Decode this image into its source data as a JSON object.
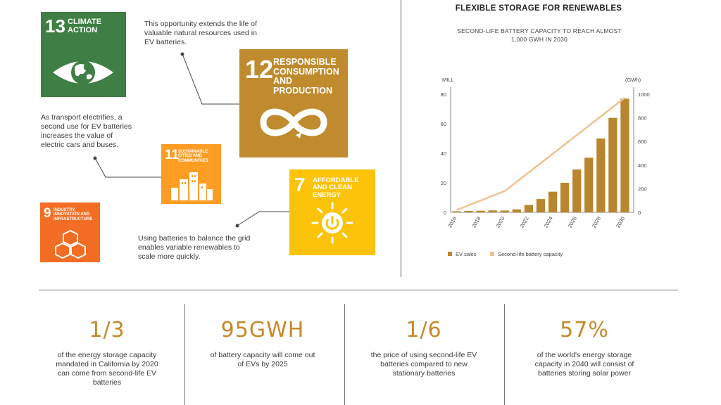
{
  "sdg": {
    "goal13": {
      "number": "13",
      "title": "CLIMATE ACTION",
      "color": "#3f7e44"
    },
    "goal12": {
      "number": "12",
      "title": "RESPONSIBLE CONSUMPTION AND PRODUCTION",
      "color": "#bf8b2e"
    },
    "goal11": {
      "number": "11",
      "title": "SUSTAINABLE CITIES AND COMMUNITIES",
      "color": "#fd9d24"
    },
    "goal7": {
      "number": "7",
      "title": "AFFORDABLE AND CLEAN ENERGY",
      "color": "#fcc30b"
    },
    "goal9": {
      "number": "9",
      "title": "INDUSTRY, INNOVATION AND INFRASTRUCTURE",
      "color": "#f36d25"
    }
  },
  "notes": {
    "resources": "This opportunity extends the life of valuable natural resources used in EV batteries.",
    "transport": "As transport electrifies, a second use for EV batteries increases the value of electric cars and buses.",
    "grid": "Using batteries to balance the grid enables variable renewables to scale more quickly."
  },
  "chart_data": {
    "type": "bar",
    "title": "FLEXIBLE STORAGE FOR RENEWABLES",
    "subtitle": "SECOND-LIFE BATTERY CAPACITY TO REACH ALMOST 1,000 GWH IN 2030",
    "left_unit": "MILL",
    "right_unit": "(GWh)",
    "categories": [
      "2016",
      "2017",
      "2018",
      "2019",
      "2020",
      "2021",
      "2022",
      "2023",
      "2024",
      "2025",
      "2026",
      "2027",
      "2028",
      "2029",
      "2030"
    ],
    "x_tick_labels": [
      "2016",
      "2018",
      "2020",
      "2022",
      "2024",
      "2026",
      "2028",
      "2030"
    ],
    "ylim_left": [
      0,
      80
    ],
    "yticks_left": [
      0,
      20,
      40,
      60,
      80
    ],
    "ylim_right": [
      0,
      1000
    ],
    "yticks_right": [
      0,
      200,
      400,
      600,
      800,
      1000
    ],
    "grid": false,
    "legend_position": "bottom-left",
    "series": [
      {
        "name": "EV sales",
        "axis": "left",
        "kind": "bar",
        "color": "#b8862e",
        "values": [
          0.7,
          0.9,
          1.1,
          1.3,
          1.2,
          2,
          5,
          9,
          14,
          20,
          29,
          37,
          50,
          64,
          77
        ]
      },
      {
        "name": "Second-life battery capacity",
        "axis": "right",
        "kind": "line",
        "color": "#f2c190",
        "points": [
          {
            "x": "2016",
            "y": 20
          },
          {
            "x": "2020",
            "y": 180
          },
          {
            "x": "2030",
            "y": 970
          }
        ]
      }
    ]
  },
  "stats": [
    {
      "value": "1/3",
      "caption": "of the energy storage capacity mandated in California by 2020 can come from second-life EV batteries"
    },
    {
      "value": "95GWH",
      "caption": "of battery capacity will come out of EVs by 2025"
    },
    {
      "value": "1/6",
      "caption": "the price of using second-life EV batteries compared to new stationary batteries"
    },
    {
      "value": "57%",
      "caption": "of the world's energy storage capacity in 2040 will consist of batteries storing solar power"
    }
  ]
}
